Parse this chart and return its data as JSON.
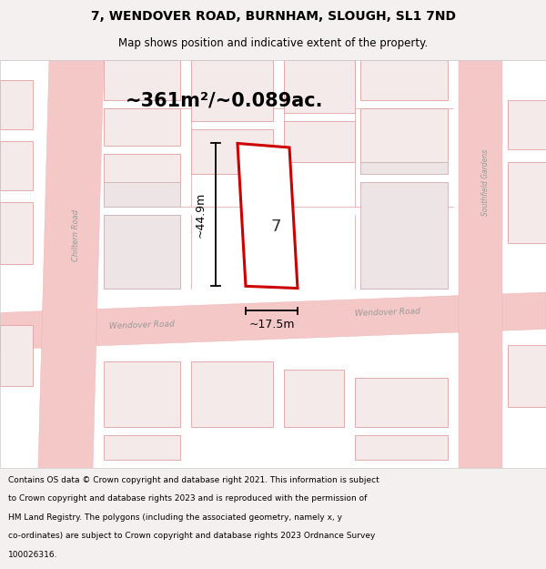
{
  "title": "7, WENDOVER ROAD, BURNHAM, SLOUGH, SL1 7ND",
  "subtitle": "Map shows position and indicative extent of the property.",
  "area_text": "~361m²/~0.089ac.",
  "dim_height": "~44.9m",
  "dim_width": "~17.5m",
  "plot_number": "7",
  "footnote_lines": [
    "Contains OS data © Crown copyright and database right 2021. This information is subject",
    "to Crown copyright and database rights 2023 and is reproduced with the permission of",
    "HM Land Registry. The polygons (including the associated geometry, namely x, y",
    "co-ordinates) are subject to Crown copyright and database rights 2023 Ordnance Survey",
    "100026316."
  ],
  "bg_color": "#f5f0f0",
  "map_bg": "#ffffff",
  "road_fill": "#f5c8c8",
  "road_edge": "#f0b0b0",
  "building_fill": "#ede5e5",
  "building_edge": "#d0b8b8",
  "pink_fill": "#f5eaea",
  "pink_edge": "#e0a0a0",
  "plot_stroke": "#cc0000",
  "plot_fill": "#ffffff",
  "dim_color": "#000000",
  "title_color": "#000000",
  "footnote_color": "#000000",
  "road_label_color": "#999999",
  "title_fontsize": 10,
  "subtitle_fontsize": 8.5,
  "area_fontsize": 15,
  "dim_fontsize": 9,
  "plot_num_fontsize": 13,
  "footnote_fontsize": 6.5,
  "road_label_fontsize": 6.5,
  "chiltern_label_fontsize": 6.0,
  "sf_label_fontsize": 5.5
}
